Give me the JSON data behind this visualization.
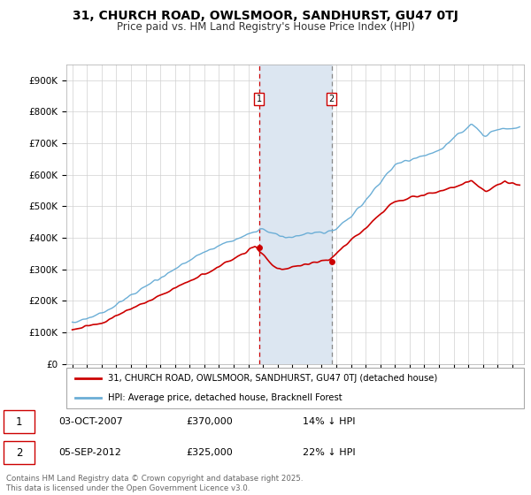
{
  "title": "31, CHURCH ROAD, OWLSMOOR, SANDHURST, GU47 0TJ",
  "subtitle": "Price paid vs. HM Land Registry's House Price Index (HPI)",
  "ylim": [
    0,
    950000
  ],
  "yticks": [
    0,
    100000,
    200000,
    300000,
    400000,
    500000,
    600000,
    700000,
    800000,
    900000
  ],
  "ytick_labels": [
    "£0",
    "£100K",
    "£200K",
    "£300K",
    "£400K",
    "£500K",
    "£600K",
    "£700K",
    "£800K",
    "£900K"
  ],
  "sale1_date": 2007.75,
  "sale1_price": 370000,
  "sale1_label": "1",
  "sale2_date": 2012.67,
  "sale2_price": 325000,
  "sale2_label": "2",
  "hpi_color": "#6baed6",
  "price_color": "#cc0000",
  "shading_color": "#dce6f1",
  "legend_entry1": "31, CHURCH ROAD, OWLSMOOR, SANDHURST, GU47 0TJ (detached house)",
  "legend_entry2": "HPI: Average price, detached house, Bracknell Forest",
  "annotation1_date": "03-OCT-2007",
  "annotation1_price": "£370,000",
  "annotation1_hpi": "14% ↓ HPI",
  "annotation2_date": "05-SEP-2012",
  "annotation2_price": "£325,000",
  "annotation2_hpi": "22% ↓ HPI",
  "copyright_text": "Contains HM Land Registry data © Crown copyright and database right 2025.\nThis data is licensed under the Open Government Licence v3.0.",
  "background_color": "#ffffff",
  "grid_color": "#d0d0d0",
  "title_fontsize": 10,
  "subtitle_fontsize": 8.5
}
